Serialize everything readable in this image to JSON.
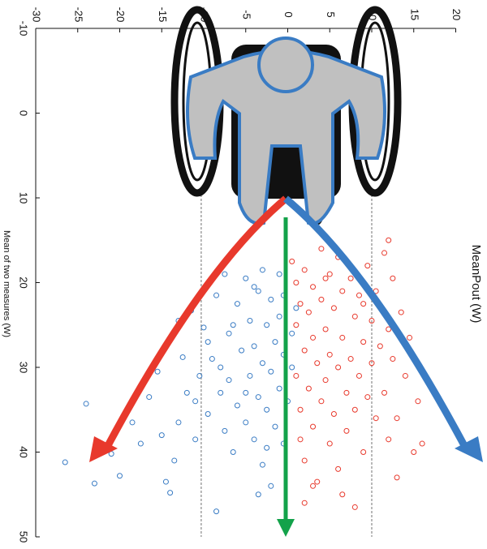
{
  "chart_data": {
    "type": "scatter",
    "x_label": "MeanPout (W)",
    "y_label": "Mean of two measures (W)",
    "xlim": [
      -30,
      20
    ],
    "ylim": [
      -10,
      50
    ],
    "xticks": [
      -30,
      -25,
      -20,
      -15,
      -10,
      -5,
      0,
      5,
      10,
      15,
      20
    ],
    "yticks": [
      -10,
      0,
      10,
      20,
      30,
      40,
      50
    ],
    "reference_x": [
      -10.3,
      10
    ],
    "series": [
      {
        "color": "#3a7cc4",
        "x": [
          -26.5,
          -24,
          -23,
          -21,
          -20,
          -18.5,
          -17.5,
          -16.5,
          -15.5,
          -15,
          -14.5,
          -14,
          -13.5,
          -13,
          -12.5,
          -12,
          -11.5,
          -11,
          -10.5,
          -10,
          -9.5,
          -9,
          -8.5,
          -8.5,
          -8,
          -7.5,
          -7,
          -7,
          -6.5,
          -6,
          -6,
          -5.5,
          -5,
          -5,
          -4.5,
          -4.5,
          -4,
          -4,
          -3.5,
          -3.5,
          -3,
          -3,
          -3,
          -2.5,
          -2.5,
          -2,
          -2,
          -2,
          -1.5,
          -1.5,
          -1,
          -1,
          -1,
          -0.5,
          -0.5,
          -0.5,
          0,
          0.5,
          0.5,
          1,
          -6.5,
          -8,
          -5,
          -4,
          -9.5,
          -7.5,
          -3.5,
          -11,
          -13,
          -2.5
        ],
        "values": [
          41.2,
          34.3,
          43.7,
          40.2,
          42.8,
          36.5,
          39,
          33.5,
          30.5,
          38,
          43.5,
          44.8,
          41,
          36.5,
          28.8,
          33,
          23.3,
          38.5,
          31,
          25.3,
          35.5,
          29,
          47,
          21.5,
          33,
          37.5,
          26,
          31.5,
          40,
          22.5,
          34.5,
          28,
          19.5,
          36.5,
          24.5,
          31,
          38.5,
          27.5,
          21,
          33.5,
          18.5,
          29.5,
          41.5,
          25,
          35,
          22,
          30.5,
          44,
          27,
          37,
          19,
          32.5,
          24,
          28.5,
          39,
          21.5,
          34,
          26,
          30,
          23,
          25,
          30,
          33,
          20.5,
          27,
          19,
          45,
          34,
          24.5,
          39.5
        ]
      },
      {
        "color": "#e8392c",
        "x": [
          0.5,
          1,
          1,
          1,
          1.5,
          1.5,
          2,
          2,
          2,
          2.5,
          2.5,
          3,
          3,
          3,
          3.5,
          3.5,
          4,
          4,
          4,
          4.5,
          4.5,
          5,
          5,
          5,
          5.5,
          5.5,
          6,
          6,
          6,
          6.5,
          6.5,
          7,
          7,
          7.5,
          7.5,
          8,
          8,
          8,
          8.5,
          8.5,
          9,
          9,
          9.5,
          9.5,
          10,
          10,
          10.5,
          10.5,
          11,
          11.5,
          11.5,
          12,
          12,
          12.5,
          12.5,
          13,
          13.5,
          14,
          14.5,
          15,
          15.5,
          16,
          12,
          13,
          3,
          2,
          6.5,
          1.5,
          4.5,
          9
        ],
        "values": [
          17.5,
          20,
          25,
          31,
          22.5,
          35,
          18.5,
          28,
          41,
          23.5,
          32.5,
          20.5,
          26.5,
          37,
          29.5,
          43.5,
          16,
          22,
          34,
          25.5,
          31.5,
          19,
          28.5,
          39,
          23,
          35.5,
          17,
          30,
          42,
          21,
          26.5,
          33,
          37.5,
          19.5,
          29,
          24,
          35,
          46.5,
          21.5,
          31,
          27,
          40,
          18,
          33.5,
          24.5,
          29.5,
          21,
          36,
          27.5,
          16.5,
          33,
          25.5,
          38.5,
          19.5,
          29,
          36,
          23.5,
          31,
          26.5,
          40,
          34,
          39,
          15,
          43,
          44,
          46,
          45,
          38.5,
          19.5,
          22.5
        ]
      }
    ]
  }
}
